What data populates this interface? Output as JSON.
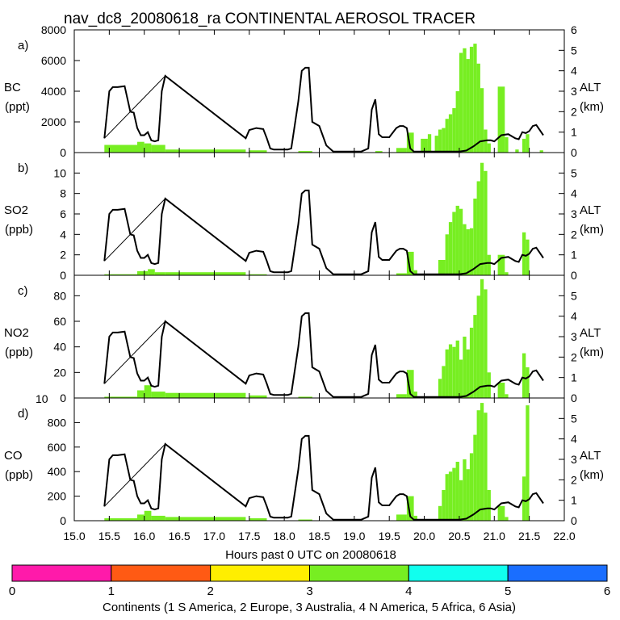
{
  "title": "nav_dc8_20080618_ra CONTINENTAL AEROSOL TRACER",
  "xlabel": "Hours past 0 UTC on 20080618",
  "x_ticks": [
    "15.0",
    "15.5",
    "16.0",
    "16.5",
    "17.0",
    "17.5",
    "18.0",
    "18.5",
    "19.0",
    "19.5",
    "20.0",
    "20.5",
    "21.0",
    "21.5",
    "22.0"
  ],
  "stray_label": "10",
  "colorbar": {
    "ticks": [
      "0",
      "1",
      "2",
      "3",
      "4",
      "5",
      "6"
    ],
    "colors": [
      "#ff1aaa",
      "#ff5a14",
      "#ffee00",
      "#77ee22",
      "#11ffee",
      "#1a6eff"
    ],
    "label": "Continents (1 S America, 2 Europe, 3 Australia, 4 N America, 5 Africa, 6 Asia)"
  },
  "chart_data": {
    "type": "bar",
    "x_range": [
      15.0,
      22.0
    ],
    "bar_color": "#77ee22",
    "altitude_km": {
      "x": [
        15.43,
        15.5,
        15.55,
        15.62,
        15.72,
        15.8,
        15.85,
        15.9,
        15.95,
        16.0,
        16.05,
        16.1,
        16.15,
        16.2,
        16.25,
        16.3,
        17.45,
        17.5,
        17.6,
        17.7,
        17.75,
        17.8,
        17.85,
        17.9,
        17.95,
        18.0,
        18.05,
        18.1,
        18.2,
        18.25,
        18.3,
        18.35,
        18.4,
        18.5,
        18.6,
        18.7,
        18.8,
        18.9,
        19.0,
        19.1,
        19.2,
        19.25,
        19.3,
        19.35,
        19.4,
        19.5,
        19.6,
        19.65,
        19.7,
        19.75,
        19.8,
        19.85,
        19.9,
        20.0,
        20.5,
        20.6,
        20.7,
        20.8,
        20.9,
        20.95,
        21.0,
        21.1,
        21.2,
        21.3,
        21.35,
        21.4,
        21.45,
        21.5,
        21.55,
        21.6,
        21.65,
        21.7
      ],
      "y": [
        0.7,
        3.0,
        3.2,
        3.2,
        3.25,
        2.0,
        1.95,
        1.2,
        0.85,
        0.85,
        1.0,
        0.6,
        0.55,
        0.6,
        3.0,
        3.75,
        0.7,
        1.1,
        1.2,
        1.15,
        0.7,
        0.2,
        0.15,
        0.15,
        0.15,
        0.15,
        0.15,
        0.2,
        2.5,
        4.0,
        4.15,
        4.15,
        1.5,
        1.3,
        0.35,
        0.05,
        0.05,
        0.05,
        0.05,
        0.05,
        0.2,
        2.1,
        2.6,
        0.9,
        0.75,
        0.75,
        1.2,
        1.3,
        1.3,
        1.2,
        0.2,
        0.05,
        0.05,
        0.05,
        0.05,
        0.1,
        0.3,
        0.55,
        0.6,
        0.6,
        0.55,
        0.85,
        0.9,
        0.7,
        0.65,
        1.0,
        0.95,
        1.05,
        1.3,
        1.35,
        1.1,
        0.85
      ]
    },
    "altitude_diagonal": {
      "x": [
        15.43,
        16.3,
        17.45
      ],
      "y": [
        0.7,
        3.75,
        0.7
      ]
    },
    "panels": [
      {
        "letter": "a)",
        "species": "BC",
        "units": "(ppt)",
        "y_ticks": [
          "0",
          "2000",
          "4000",
          "6000",
          "8000"
        ],
        "ylim": [
          0,
          8000
        ],
        "right_label": "ALT",
        "right_units": "(km)",
        "alt_ticks": [
          "0",
          "1",
          "2",
          "3",
          "4",
          "5",
          "6"
        ],
        "alt_max": 6,
        "bars": [
          [
            15.43,
            15.9,
            500
          ],
          [
            15.9,
            16.0,
            700
          ],
          [
            16.0,
            16.1,
            600
          ],
          [
            16.1,
            16.3,
            500
          ],
          [
            16.3,
            17.45,
            200
          ],
          [
            17.5,
            17.75,
            150
          ],
          [
            18.2,
            18.4,
            100
          ],
          [
            19.3,
            19.4,
            100
          ],
          [
            19.6,
            19.75,
            300
          ],
          [
            19.75,
            19.85,
            1300
          ],
          [
            19.95,
            20.05,
            900
          ],
          [
            20.05,
            20.1,
            1200
          ],
          [
            20.15,
            20.2,
            1100
          ],
          [
            20.2,
            20.25,
            1500
          ],
          [
            20.25,
            20.3,
            1600
          ],
          [
            20.3,
            20.35,
            2200
          ],
          [
            20.35,
            20.4,
            2500
          ],
          [
            20.4,
            20.45,
            2900
          ],
          [
            20.45,
            20.5,
            4000
          ],
          [
            20.5,
            20.55,
            6500
          ],
          [
            20.55,
            20.6,
            6800
          ],
          [
            20.6,
            20.65,
            6100
          ],
          [
            20.65,
            20.7,
            6900
          ],
          [
            20.7,
            20.75,
            7100
          ],
          [
            20.75,
            20.8,
            5800
          ],
          [
            20.8,
            20.85,
            4200
          ],
          [
            20.85,
            20.9,
            1500
          ],
          [
            20.9,
            20.95,
            600
          ],
          [
            21.05,
            21.15,
            4300
          ],
          [
            21.15,
            21.2,
            1000
          ],
          [
            21.3,
            21.35,
            200
          ],
          [
            21.4,
            21.45,
            900
          ],
          [
            21.45,
            21.5,
            1200
          ],
          [
            21.65,
            21.7,
            150
          ]
        ]
      },
      {
        "letter": "b)",
        "species": "SO2",
        "units": "(ppb)",
        "y_ticks": [
          "0",
          "2",
          "4",
          "6",
          "8",
          "10"
        ],
        "ylim": [
          0,
          12
        ],
        "right_label": "ALT",
        "right_units": "(km)",
        "alt_ticks": [
          "0",
          "1",
          "2",
          "3",
          "4",
          "5"
        ],
        "alt_max": 6,
        "bars": [
          [
            15.43,
            15.9,
            0.1
          ],
          [
            15.9,
            16.05,
            0.4
          ],
          [
            16.05,
            16.15,
            0.6
          ],
          [
            16.15,
            16.3,
            0.3
          ],
          [
            16.3,
            17.45,
            0.3
          ],
          [
            17.5,
            17.75,
            0.1
          ],
          [
            19.6,
            19.75,
            0.2
          ],
          [
            19.75,
            19.85,
            2.3
          ],
          [
            19.85,
            19.9,
            0.5
          ],
          [
            20.2,
            20.3,
            1.5
          ],
          [
            20.3,
            20.35,
            4.0
          ],
          [
            20.35,
            20.4,
            5.2
          ],
          [
            20.4,
            20.45,
            6.2
          ],
          [
            20.45,
            20.5,
            6.8
          ],
          [
            20.5,
            20.55,
            6.5
          ],
          [
            20.55,
            20.6,
            5.0
          ],
          [
            20.6,
            20.65,
            4.5
          ],
          [
            20.65,
            20.7,
            4.6
          ],
          [
            20.7,
            20.75,
            7.5
          ],
          [
            20.75,
            20.8,
            9.2
          ],
          [
            20.8,
            20.85,
            11.0
          ],
          [
            20.85,
            20.9,
            10.2
          ],
          [
            20.9,
            20.95,
            2.0
          ],
          [
            21.05,
            21.15,
            2.0
          ],
          [
            21.15,
            21.2,
            0.3
          ],
          [
            21.4,
            21.45,
            4.2
          ],
          [
            21.45,
            21.5,
            3.5
          ]
        ]
      },
      {
        "letter": "c)",
        "species": "NO2",
        "units": "(ppb)",
        "y_ticks": [
          "0",
          "20",
          "40",
          "60",
          "80"
        ],
        "ylim": [
          0,
          96
        ],
        "right_label": "ALT",
        "right_units": "(km)",
        "alt_ticks": [
          "0",
          "1",
          "2",
          "3",
          "4",
          "5"
        ],
        "alt_max": 6,
        "bars": [
          [
            15.43,
            15.9,
            1
          ],
          [
            15.9,
            16.0,
            6
          ],
          [
            16.0,
            16.1,
            10
          ],
          [
            16.1,
            16.3,
            5
          ],
          [
            16.3,
            17.45,
            4
          ],
          [
            17.5,
            17.75,
            2
          ],
          [
            18.2,
            18.4,
            1
          ],
          [
            19.6,
            19.75,
            3
          ],
          [
            19.75,
            19.85,
            22
          ],
          [
            19.85,
            19.9,
            5
          ],
          [
            20.2,
            20.25,
            15
          ],
          [
            20.25,
            20.3,
            25
          ],
          [
            20.3,
            20.35,
            38
          ],
          [
            20.35,
            20.4,
            42
          ],
          [
            20.4,
            20.45,
            40
          ],
          [
            20.45,
            20.5,
            45
          ],
          [
            20.5,
            20.55,
            30
          ],
          [
            20.55,
            20.6,
            48
          ],
          [
            20.6,
            20.65,
            38
          ],
          [
            20.65,
            20.7,
            55
          ],
          [
            20.7,
            20.75,
            65
          ],
          [
            20.75,
            20.8,
            80
          ],
          [
            20.8,
            20.85,
            93
          ],
          [
            20.85,
            20.9,
            85
          ],
          [
            20.9,
            20.95,
            20
          ],
          [
            21.05,
            21.15,
            12
          ],
          [
            21.15,
            21.2,
            3
          ],
          [
            21.4,
            21.45,
            35
          ],
          [
            21.45,
            21.5,
            24
          ]
        ]
      },
      {
        "letter": "d)",
        "species": "CO",
        "units": "(ppb)",
        "y_ticks": [
          "0",
          "200",
          "400",
          "600",
          "800"
        ],
        "ylim": [
          0,
          1000
        ],
        "right_label": "ALT",
        "right_units": "(km)",
        "alt_ticks": [
          "0",
          "1",
          "2",
          "3",
          "4",
          "5"
        ],
        "alt_max": 6,
        "bars": [
          [
            15.43,
            15.9,
            20
          ],
          [
            15.9,
            16.0,
            50
          ],
          [
            16.0,
            16.1,
            80
          ],
          [
            16.1,
            16.3,
            40
          ],
          [
            16.3,
            17.45,
            30
          ],
          [
            17.5,
            17.75,
            20
          ],
          [
            18.2,
            18.4,
            10
          ],
          [
            19.6,
            19.75,
            50
          ],
          [
            19.75,
            19.85,
            200
          ],
          [
            19.85,
            19.9,
            40
          ],
          [
            20.2,
            20.25,
            120
          ],
          [
            20.25,
            20.3,
            250
          ],
          [
            20.3,
            20.35,
            380
          ],
          [
            20.35,
            20.4,
            400
          ],
          [
            20.4,
            20.45,
            430
          ],
          [
            20.45,
            20.5,
            480
          ],
          [
            20.5,
            20.55,
            330
          ],
          [
            20.55,
            20.6,
            500
          ],
          [
            20.6,
            20.65,
            420
          ],
          [
            20.65,
            20.7,
            550
          ],
          [
            20.7,
            20.75,
            700
          ],
          [
            20.75,
            20.8,
            900
          ],
          [
            20.8,
            20.85,
            960
          ],
          [
            20.85,
            20.9,
            880
          ],
          [
            20.9,
            20.95,
            250
          ],
          [
            21.05,
            21.15,
            120
          ],
          [
            21.15,
            21.2,
            30
          ],
          [
            21.4,
            21.45,
            360
          ],
          [
            21.45,
            21.5,
            940
          ]
        ]
      }
    ]
  }
}
